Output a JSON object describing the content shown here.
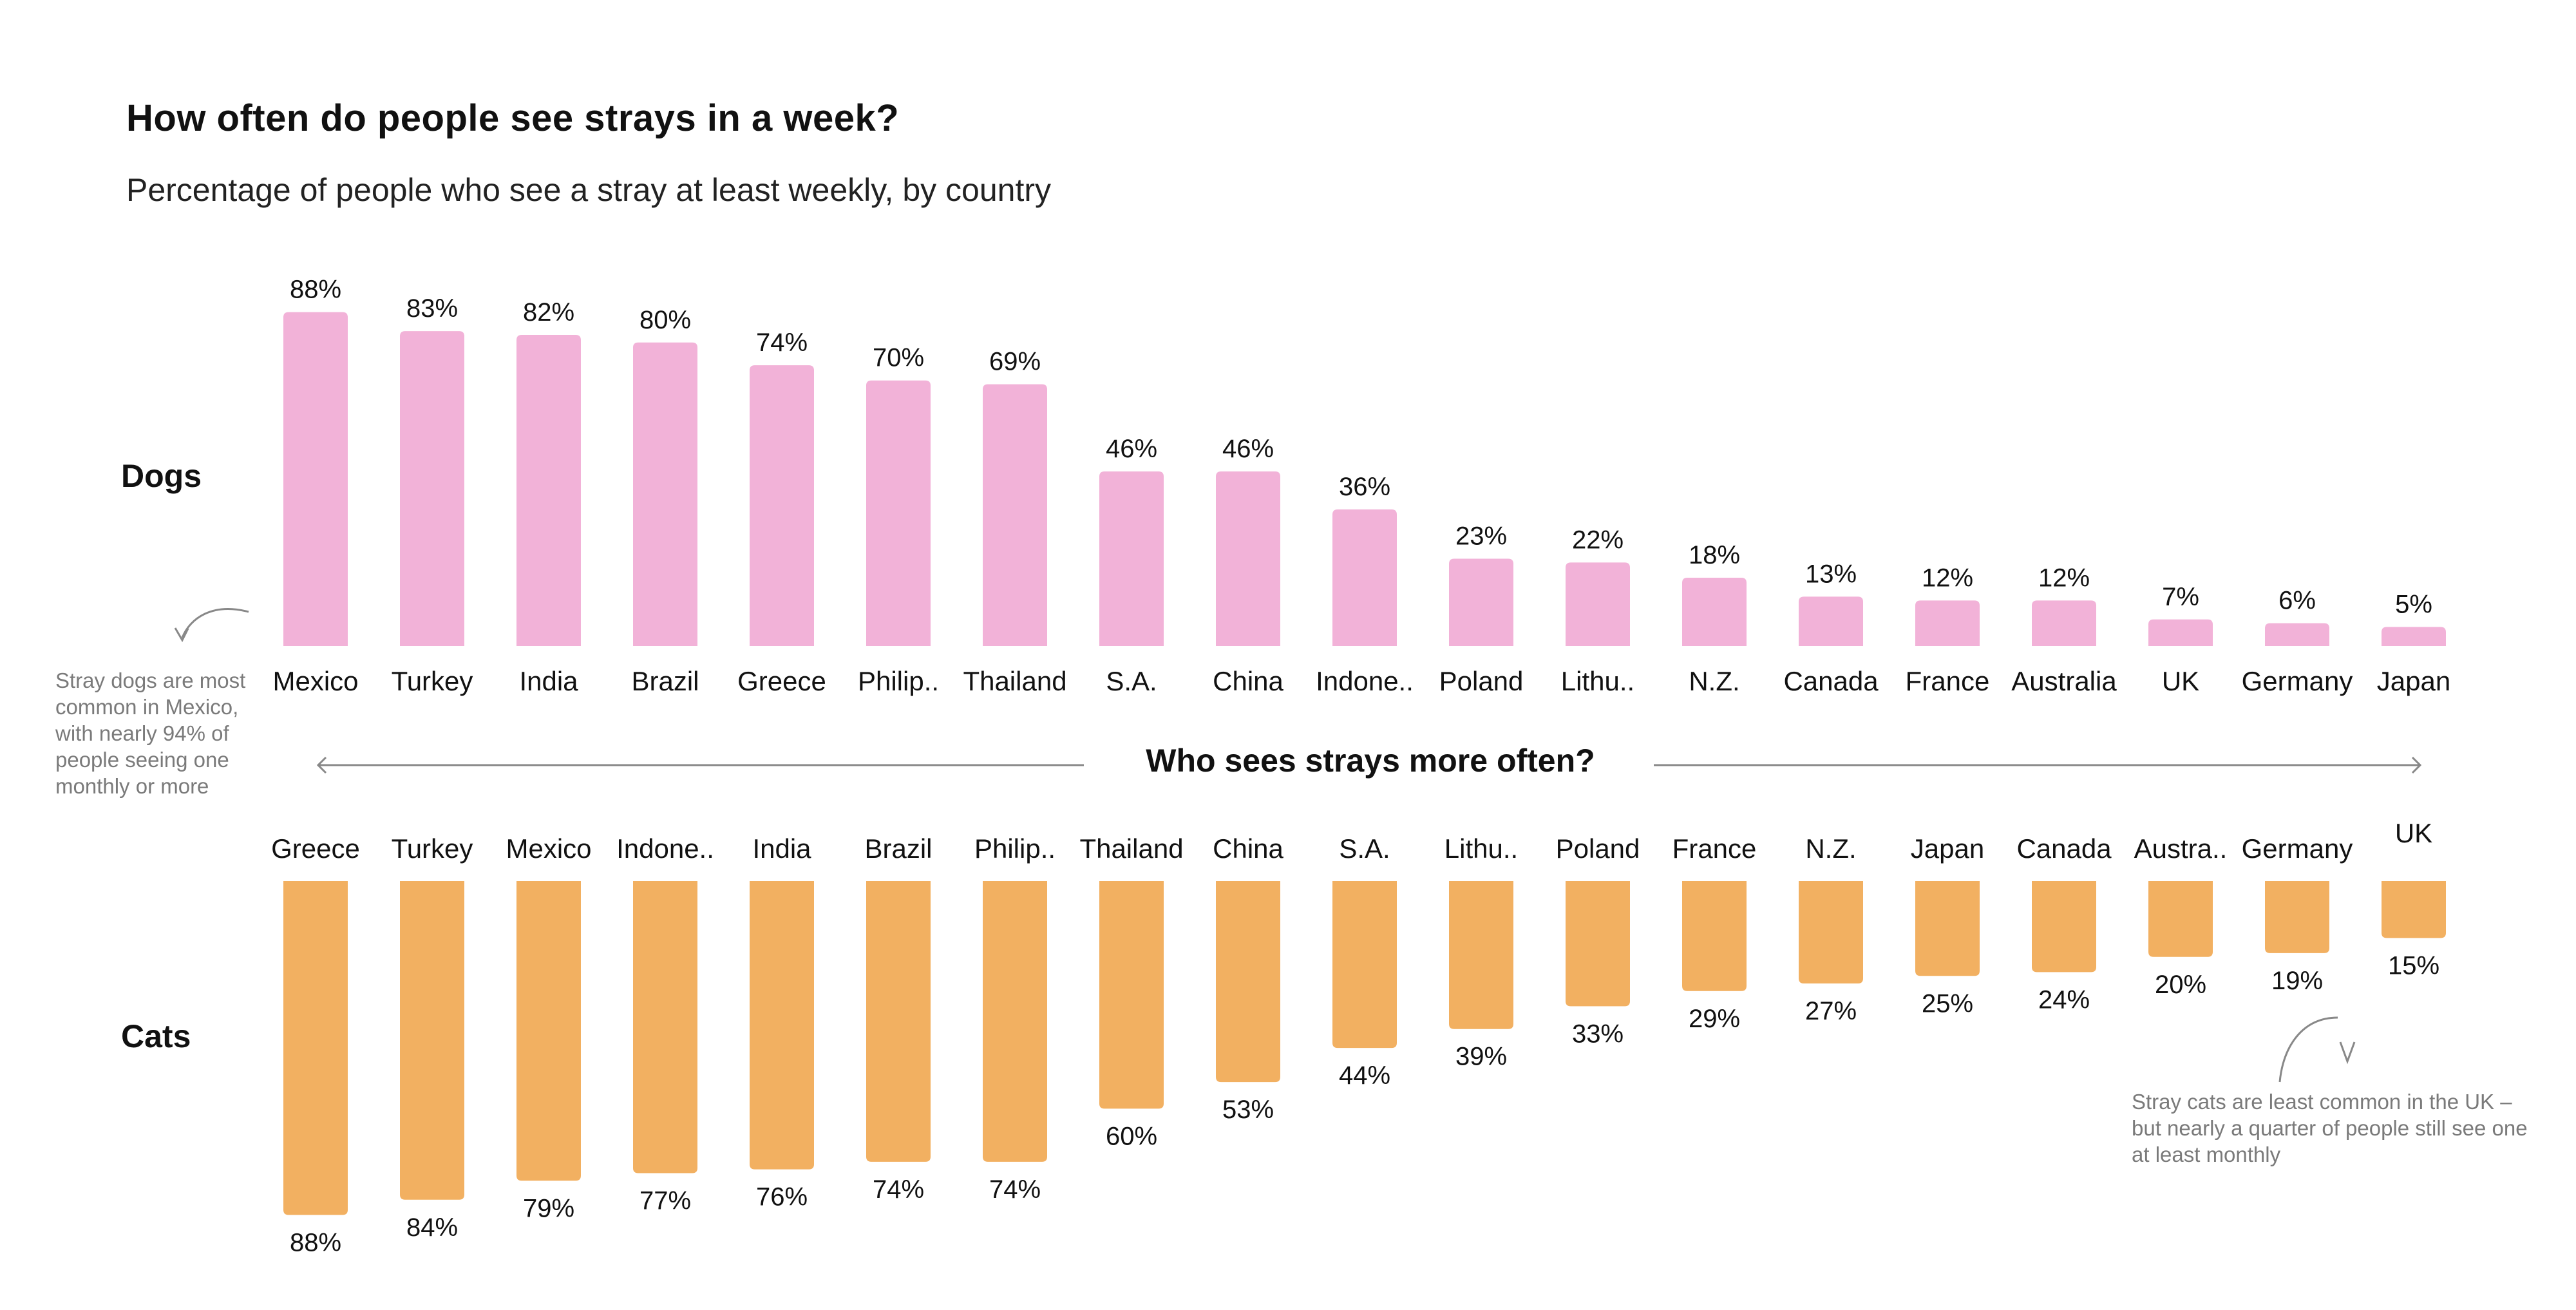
{
  "header": {
    "title": "How often do people see strays in a week?",
    "subtitle": "Percentage of people who see a stray at least weekly, by country"
  },
  "axis_title": "Who sees strays more often?",
  "annotations": {
    "dogs": "Stray dogs are most common in Mexico, with nearly 94% of people seeing one monthly or more",
    "cats": "Stray cats are least common in the UK – but nearly a quarter of people still see one at least monthly"
  },
  "colors": {
    "dogs": "#F2B2D8",
    "cats": "#F2B061",
    "annotation": "#7a7a7a",
    "arrow": "#888888"
  },
  "chart_data": [
    {
      "type": "bar",
      "name": "Dogs",
      "title": "How often do people see strays in a week?",
      "subtitle": "Percentage of people who see a stray at least weekly, by country",
      "row_label": "Dogs",
      "orientation": "vertical-up",
      "categories": [
        "Mexico",
        "Turkey",
        "India",
        "Brazil",
        "Greece",
        "Philip..",
        "Thailand",
        "S.A.",
        "China",
        "Indone..",
        "Poland",
        "Lithu..",
        "N.Z.",
        "Canada",
        "France",
        "Australia",
        "UK",
        "Germany",
        "Japan"
      ],
      "values": [
        88,
        83,
        82,
        80,
        74,
        70,
        69,
        46,
        46,
        36,
        23,
        22,
        18,
        13,
        12,
        12,
        7,
        6,
        5
      ],
      "value_labels": [
        "88%",
        "83%",
        "82%",
        "80%",
        "74%",
        "70%",
        "69%",
        "46%",
        "46%",
        "36%",
        "23%",
        "22%",
        "18%",
        "13%",
        "12%",
        "12%",
        "7%",
        "6%",
        "5%"
      ],
      "unit": "%",
      "ylim": [
        0,
        100
      ],
      "grid": false,
      "legend": "none"
    },
    {
      "type": "bar",
      "name": "Cats",
      "row_label": "Cats",
      "orientation": "vertical-down",
      "categories": [
        "Greece",
        "Turkey",
        "Mexico",
        "Indone..",
        "India",
        "Brazil",
        "Philip..",
        "Thailand",
        "China",
        "S.A.",
        "Lithu..",
        "Poland",
        "France",
        "N.Z.",
        "Japan",
        "Canada",
        "Austra..",
        "Germany",
        "UK"
      ],
      "values": [
        88,
        84,
        79,
        77,
        76,
        74,
        74,
        60,
        53,
        44,
        39,
        33,
        29,
        27,
        25,
        24,
        20,
        19,
        15
      ],
      "value_labels": [
        "88%",
        "84%",
        "79%",
        "77%",
        "76%",
        "74%",
        "74%",
        "60%",
        "53%",
        "44%",
        "39%",
        "33%",
        "29%",
        "27%",
        "25%",
        "24%",
        "20%",
        "19%",
        "15%"
      ],
      "unit": "%",
      "ylim": [
        0,
        100
      ],
      "grid": false,
      "legend": "none"
    }
  ]
}
